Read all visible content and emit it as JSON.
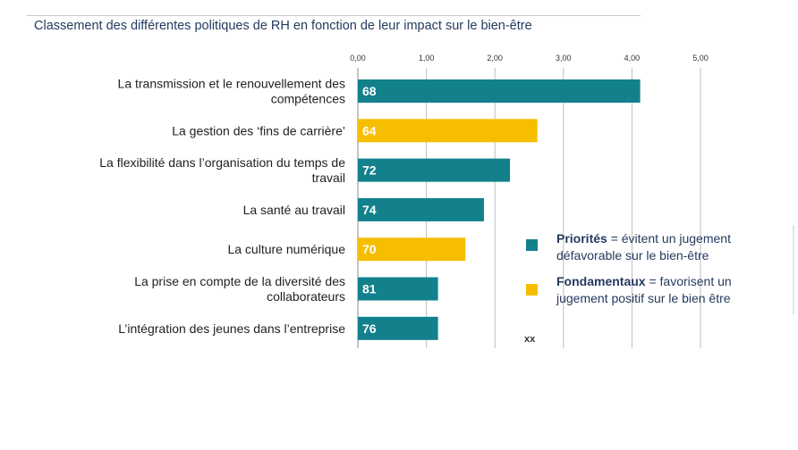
{
  "chart_data": {
    "type": "bar",
    "orientation": "horizontal",
    "title": "Classement des différentes politiques de RH en fonction de leur impact sur le bien-être",
    "xlim": [
      0,
      5
    ],
    "ticks": [
      "0,00",
      "1,00",
      "2,00",
      "3,00",
      "4,00",
      "5,00"
    ],
    "grid": true,
    "categories": [
      [
        "La transmission et le renouvellement des",
        "compétences"
      ],
      [
        "La gestion des ‘fins de carrière’"
      ],
      [
        "La flexibilité  dans l’organisation du temps de",
        "travail"
      ],
      [
        "La santé au travail"
      ],
      [
        "La culture numérique"
      ],
      [
        "La prise en compte de la diversité des",
        "collaborateurs"
      ],
      [
        "L’intégration des jeunes dans l’entreprise"
      ]
    ],
    "values": [
      4.12,
      2.62,
      2.22,
      1.84,
      1.57,
      1.17,
      1.17
    ],
    "bar_labels": [
      "68",
      "64",
      "72",
      "74",
      "70",
      "81",
      "76"
    ],
    "groups": [
      "priorites",
      "fondamentaux",
      "priorites",
      "priorites",
      "fondamentaux",
      "priorites",
      "priorites"
    ],
    "colors": {
      "priorites": "#12818c",
      "fondamentaux": "#f7be00"
    },
    "legend": {
      "placement": "right",
      "items": [
        {
          "group": "priorites",
          "bold": "Priorités",
          "text": [
            " = évitent un jugement",
            "défavorable sur le bien-être"
          ]
        },
        {
          "group": "fondamentaux",
          "bold": "Fondamentaux",
          "text": [
            " = favorisent un",
            "jugement  positif sur le bien être"
          ]
        }
      ]
    },
    "note": "xx"
  }
}
